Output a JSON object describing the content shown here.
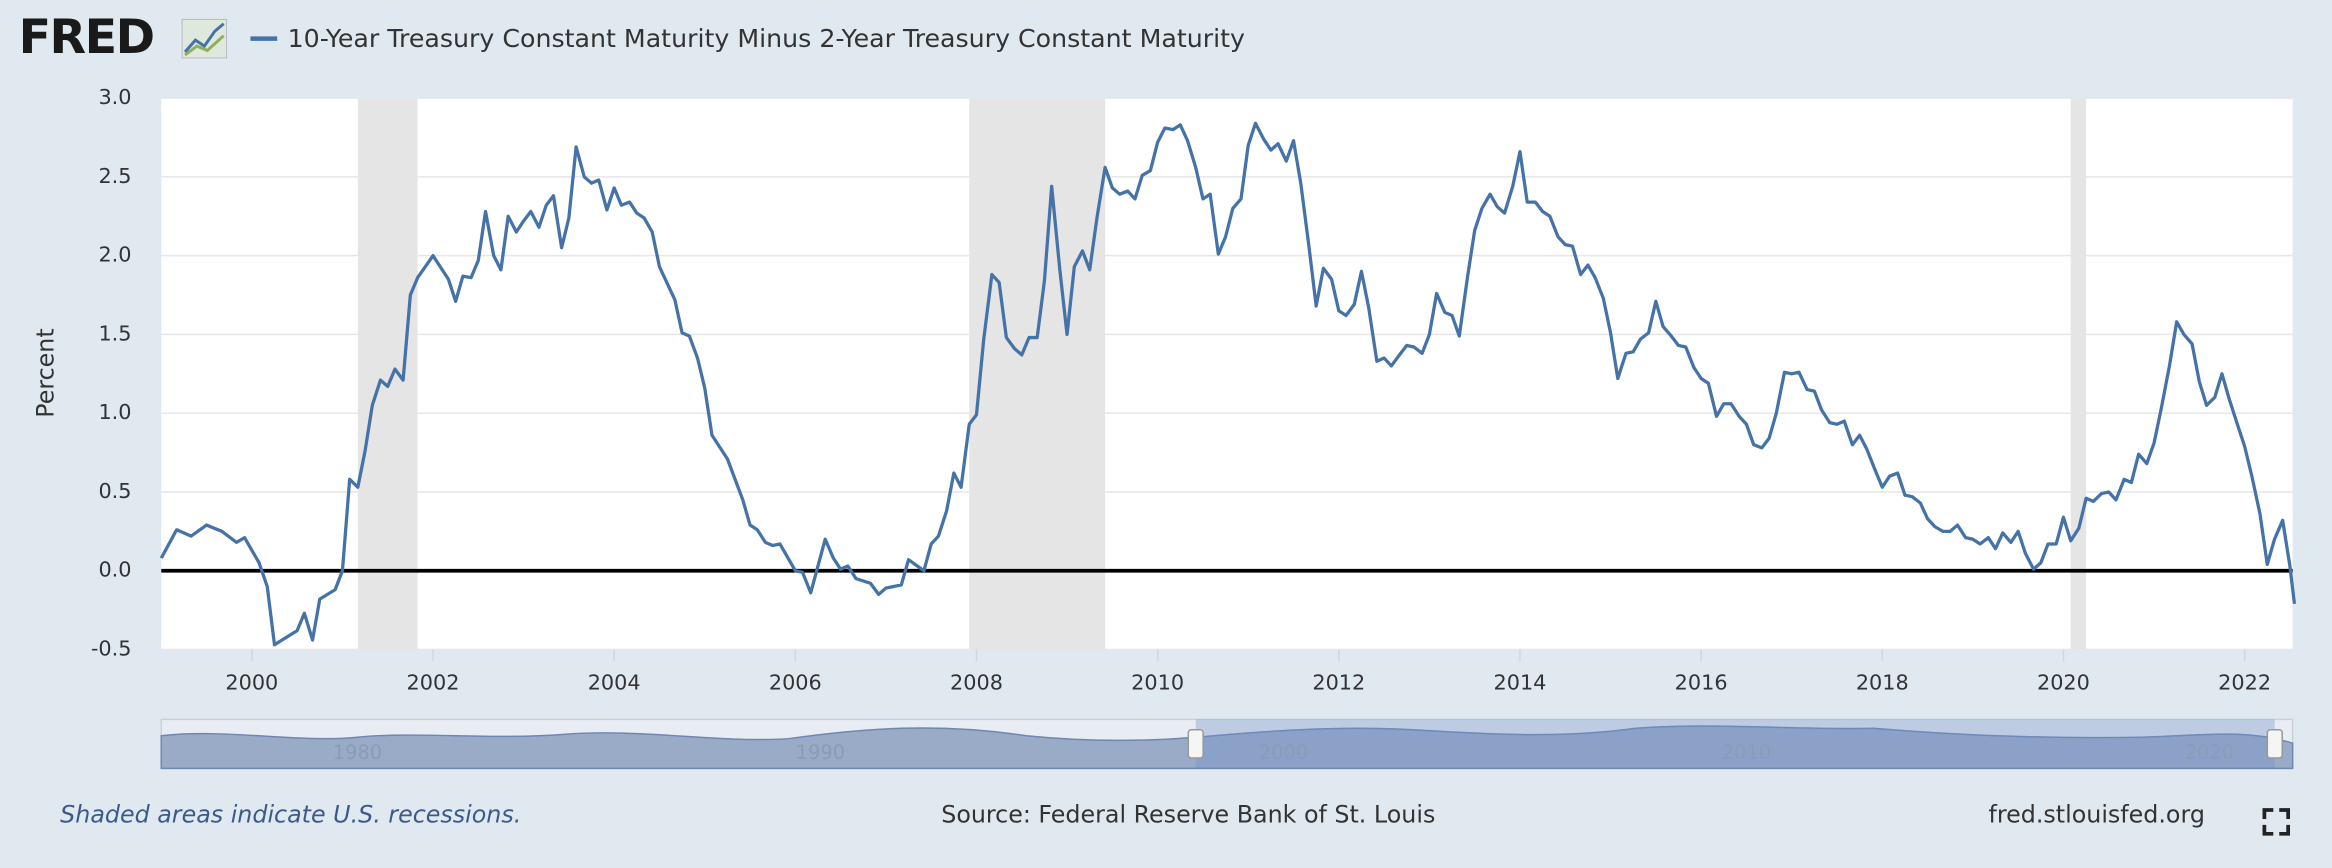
{
  "logo": "FRED",
  "chart_data": {
    "type": "line",
    "ylabel": "Percent",
    "note": "Shaded areas indicate U.S. recessions.",
    "source": "Source: Federal Reserve Bank of St. Louis",
    "site": "fred.stlouisfed.org",
    "xlim": [
      1999.0,
      2022.53
    ],
    "xticks": [
      2000,
      2002,
      2004,
      2006,
      2008,
      2010,
      2012,
      2014,
      2016,
      2018,
      2020,
      2022
    ],
    "ylim": [
      -0.5,
      3.0
    ],
    "yticks": [
      -0.5,
      {
        "value": 0,
        "label": "0.0"
      },
      0.5,
      {
        "value": 1,
        "label": "1.0"
      },
      1.5,
      {
        "value": 2,
        "label": "2.0"
      },
      2.5,
      {
        "value": 3,
        "label": "3.0"
      }
    ],
    "grid": true,
    "reference_line": {
      "value": 0,
      "color": "#000000"
    },
    "recessions": [
      {
        "start": 2001.17,
        "end": 2001.83
      },
      {
        "start": 2007.92,
        "end": 2009.42
      },
      {
        "start": 2020.08,
        "end": 2020.25
      }
    ],
    "navigator_labels": [
      "1980",
      "1990",
      "2000",
      "2010",
      "2020"
    ],
    "x": [
      1999.0,
      1999.17,
      1999.33,
      1999.5,
      1999.67,
      1999.83,
      1999.92,
      2000.08,
      2000.17,
      2000.25,
      2000.5,
      2000.58,
      2000.67,
      2000.75,
      2000.92,
      2001.0,
      2001.08,
      2001.17,
      2001.25,
      2001.33,
      2001.42,
      2001.5,
      2001.58,
      2001.67,
      2001.75,
      2001.83,
      2002.0,
      2002.17,
      2002.25,
      2002.33,
      2002.42,
      2002.5,
      2002.58,
      2002.67,
      2002.75,
      2002.83,
      2002.92,
      2003.0,
      2003.08,
      2003.17,
      2003.25,
      2003.33,
      2003.42,
      2003.5,
      2003.58,
      2003.67,
      2003.75,
      2003.83,
      2003.92,
      2004.0,
      2004.08,
      2004.17,
      2004.25,
      2004.33,
      2004.42,
      2004.5,
      2004.67,
      2004.75,
      2004.83,
      2004.92,
      2005.0,
      2005.08,
      2005.25,
      2005.42,
      2005.5,
      2005.58,
      2005.67,
      2005.75,
      2005.83,
      2006.0,
      2006.08,
      2006.17,
      2006.33,
      2006.42,
      2006.5,
      2006.58,
      2006.67,
      2006.83,
      2006.92,
      2007.0,
      2007.17,
      2007.25,
      2007.42,
      2007.5,
      2007.58,
      2007.67,
      2007.75,
      2007.83,
      2007.92,
      2008.0,
      2008.08,
      2008.17,
      2008.25,
      2008.33,
      2008.42,
      2008.5,
      2008.58,
      2008.67,
      2008.75,
      2008.83,
      2008.92,
      2009.0,
      2009.08,
      2009.17,
      2009.25,
      2009.33,
      2009.42,
      2009.5,
      2009.58,
      2009.67,
      2009.75,
      2009.83,
      2009.92,
      2010.0,
      2010.08,
      2010.17,
      2010.25,
      2010.33,
      2010.42,
      2010.5,
      2010.58,
      2010.67,
      2010.75,
      2010.83,
      2010.92,
      2011.0,
      2011.08,
      2011.17,
      2011.25,
      2011.33,
      2011.42,
      2011.5,
      2011.58,
      2011.67,
      2011.75,
      2011.83,
      2011.92,
      2012.0,
      2012.08,
      2012.17,
      2012.25,
      2012.33,
      2012.42,
      2012.5,
      2012.58,
      2012.67,
      2012.75,
      2012.83,
      2012.92,
      2013.0,
      2013.08,
      2013.17,
      2013.25,
      2013.33,
      2013.42,
      2013.5,
      2013.58,
      2013.67,
      2013.75,
      2013.83,
      2013.92,
      2014.0,
      2014.08,
      2014.17,
      2014.25,
      2014.33,
      2014.42,
      2014.5,
      2014.58,
      2014.67,
      2014.75,
      2014.83,
      2014.92,
      2015.0,
      2015.08,
      2015.17,
      2015.25,
      2015.33,
      2015.42,
      2015.5,
      2015.58,
      2015.67,
      2015.75,
      2015.83,
      2015.92,
      2016.0,
      2016.08,
      2016.17,
      2016.25,
      2016.33,
      2016.42,
      2016.5,
      2016.58,
      2016.67,
      2016.75,
      2016.83,
      2016.92,
      2017.0,
      2017.08,
      2017.17,
      2017.25,
      2017.33,
      2017.42,
      2017.5,
      2017.58,
      2017.67,
      2017.75,
      2017.83,
      2017.92,
      2018.0,
      2018.08,
      2018.17,
      2018.25,
      2018.33,
      2018.42,
      2018.5,
      2018.58,
      2018.67,
      2018.75,
      2018.83,
      2018.92,
      2019.0,
      2019.08,
      2019.17,
      2019.25,
      2019.33,
      2019.42,
      2019.5,
      2019.58,
      2019.67,
      2019.75,
      2019.83,
      2019.92,
      2020.0,
      2020.08,
      2020.17,
      2020.25,
      2020.33,
      2020.42,
      2020.5,
      2020.58,
      2020.67,
      2020.75,
      2020.83,
      2020.92,
      2021.0,
      2021.08,
      2021.17,
      2021.25,
      2021.33,
      2021.42,
      2021.5,
      2021.58,
      2021.67,
      2021.75,
      2021.83,
      2021.92,
      2022.0,
      2022.08,
      2022.17,
      2022.25,
      2022.33,
      2022.42,
      2022.5,
      2022.55
    ],
    "series": [
      {
        "name": "10-Year Treasury Constant Maturity Minus 2-Year Treasury Constant Maturity",
        "color": "#4572a7",
        "values": [
          0.08,
          0.26,
          0.22,
          0.29,
          0.25,
          0.18,
          0.21,
          0.05,
          -0.1,
          -0.47,
          -0.38,
          -0.27,
          -0.44,
          -0.18,
          -0.12,
          0.0,
          0.58,
          0.53,
          0.76,
          1.05,
          1.21,
          1.17,
          1.28,
          1.21,
          1.75,
          1.86,
          2.0,
          1.85,
          1.71,
          1.87,
          1.86,
          1.97,
          2.28,
          2.0,
          1.91,
          2.25,
          2.15,
          2.22,
          2.28,
          2.18,
          2.32,
          2.38,
          2.05,
          2.24,
          2.69,
          2.5,
          2.46,
          2.48,
          2.29,
          2.43,
          2.32,
          2.34,
          2.27,
          2.24,
          2.15,
          1.93,
          1.72,
          1.51,
          1.49,
          1.35,
          1.16,
          0.86,
          0.71,
          0.45,
          0.29,
          0.26,
          0.18,
          0.16,
          0.17,
          0.0,
          -0.01,
          -0.14,
          0.2,
          0.08,
          0.01,
          0.03,
          -0.05,
          -0.08,
          -0.15,
          -0.11,
          -0.09,
          0.07,
          0.0,
          0.17,
          0.22,
          0.38,
          0.62,
          0.53,
          0.93,
          0.99,
          1.47,
          1.88,
          1.83,
          1.48,
          1.41,
          1.37,
          1.48,
          1.48,
          1.84,
          2.44,
          1.91,
          1.5,
          1.93,
          2.03,
          1.91,
          2.24,
          2.56,
          2.43,
          2.39,
          2.41,
          2.36,
          2.51,
          2.54,
          2.72,
          2.81,
          2.8,
          2.83,
          2.73,
          2.56,
          2.36,
          2.39,
          2.01,
          2.12,
          2.3,
          2.36,
          2.7,
          2.84,
          2.74,
          2.67,
          2.71,
          2.6,
          2.73,
          2.46,
          2.06,
          1.68,
          1.92,
          1.85,
          1.65,
          1.62,
          1.69,
          1.9,
          1.67,
          1.33,
          1.35,
          1.3,
          1.37,
          1.43,
          1.42,
          1.38,
          1.5,
          1.76,
          1.64,
          1.62,
          1.49,
          1.86,
          2.16,
          2.3,
          2.39,
          2.31,
          2.27,
          2.44,
          2.66,
          2.34,
          2.34,
          2.28,
          2.25,
          2.12,
          2.07,
          2.06,
          1.88,
          1.94,
          1.86,
          1.73,
          1.51,
          1.22,
          1.38,
          1.39,
          1.47,
          1.51,
          1.71,
          1.55,
          1.49,
          1.43,
          1.42,
          1.29,
          1.22,
          1.19,
          0.98,
          1.06,
          1.06,
          0.98,
          0.93,
          0.8,
          0.78,
          0.84,
          1.0,
          1.26,
          1.25,
          1.26,
          1.15,
          1.14,
          1.02,
          0.94,
          0.93,
          0.95,
          0.8,
          0.86,
          0.77,
          0.64,
          0.53,
          0.6,
          0.62,
          0.48,
          0.47,
          0.43,
          0.33,
          0.28,
          0.25,
          0.25,
          0.29,
          0.21,
          0.2,
          0.17,
          0.21,
          0.14,
          0.24,
          0.18,
          0.25,
          0.11,
          0.01,
          0.05,
          0.17,
          0.17,
          0.34,
          0.19,
          0.27,
          0.46,
          0.44,
          0.49,
          0.5,
          0.45,
          0.58,
          0.56,
          0.74,
          0.68,
          0.81,
          1.03,
          1.3,
          1.58,
          1.5,
          1.44,
          1.2,
          1.05,
          1.1,
          1.25,
          1.09,
          0.93,
          0.79,
          0.6,
          0.36,
          0.04,
          0.2,
          0.32,
          0.03,
          -0.21
        ]
      }
    ]
  }
}
